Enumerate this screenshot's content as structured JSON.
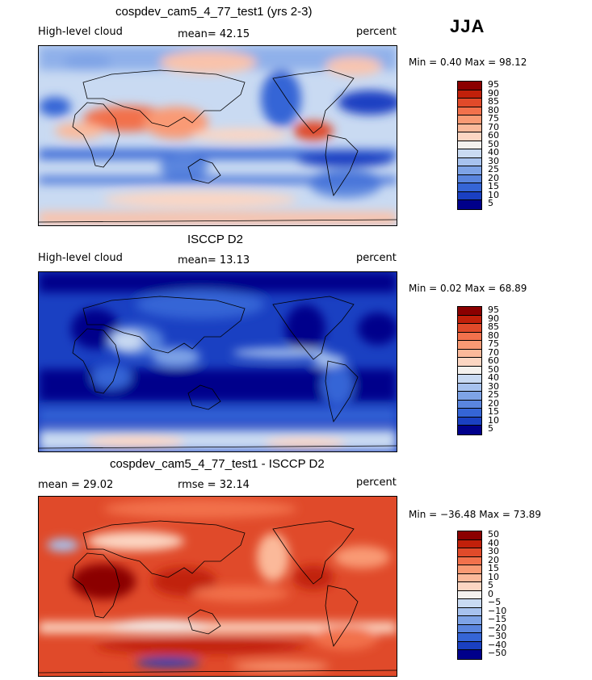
{
  "season": "JJA",
  "panels": [
    {
      "id": "model",
      "title": "cospdev_cam5_4_77_test1 (yrs 2-3)",
      "left_label": "High-level cloud",
      "center_label": "mean=  42.15",
      "right_label": "percent",
      "minmax": "Min =    0.40 Max =   98.12",
      "colorbar_labels": [
        "95",
        "90",
        "85",
        "80",
        "75",
        "70",
        "60",
        "50",
        "40",
        "30",
        "25",
        "20",
        "15",
        "10",
        "5"
      ],
      "scheme": "model"
    },
    {
      "id": "obs",
      "title": "ISCCP D2",
      "left_label": "High-level cloud",
      "center_label": "mean=  13.13",
      "right_label": "percent",
      "minmax": "Min =    0.02 Max =   68.89",
      "colorbar_labels": [
        "95",
        "90",
        "85",
        "80",
        "75",
        "70",
        "60",
        "50",
        "40",
        "30",
        "25",
        "20",
        "15",
        "10",
        "5"
      ],
      "scheme": "obs"
    },
    {
      "id": "diff",
      "title": "cospdev_cam5_4_77_test1 - ISCCP D2",
      "left_label": "mean =  29.02",
      "center_label": "rmse =  32.14",
      "right_label": "percent",
      "minmax": "Min = −36.48 Max =   73.89",
      "colorbar_labels": [
        "50",
        "40",
        "30",
        "20",
        "15",
        "10",
        "5",
        "0",
        "−5",
        "−10",
        "−15",
        "−20",
        "−30",
        "−40",
        "−50"
      ],
      "scheme": "diff"
    }
  ],
  "colorbar_colors": [
    "#8b0000",
    "#c1200a",
    "#e04a2a",
    "#f2714c",
    "#f99a74",
    "#fbb99a",
    "#fcd6c2",
    "#f4f1ee",
    "#c9daf2",
    "#a7c2ee",
    "#7ea3e6",
    "#5a85de",
    "#3565d6",
    "#1a40c2",
    "#00008b"
  ]
}
